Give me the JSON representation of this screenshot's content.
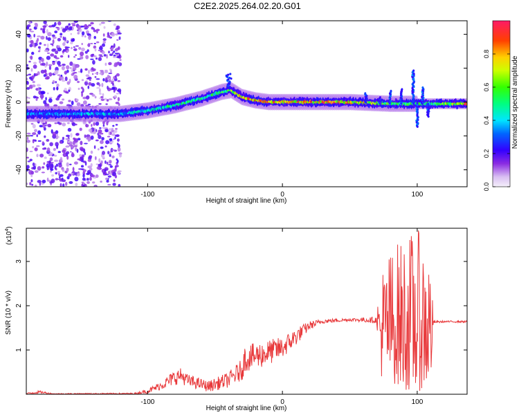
{
  "title": "C2E2.2025.264.02.20.G01",
  "chart_data": [
    {
      "type": "heatmap",
      "xlabel": "Height of straight line (km)",
      "ylabel": "Frequency (Hz)",
      "xlim": [
        -190,
        137
      ],
      "ylim": [
        -50,
        48
      ],
      "xticks": [
        -100,
        0,
        100
      ],
      "yticks": [
        -40,
        -20,
        0,
        20,
        40
      ],
      "colorbar": {
        "label": "Normalized spectral amplitude",
        "ticks": [
          "0.0",
          "0.2",
          "0.4",
          "0.6",
          "0.8"
        ],
        "range": [
          0,
          1
        ]
      },
      "ridge": {
        "description_free": true,
        "x": [
          -190,
          -150,
          -120,
          -100,
          -80,
          -60,
          -45,
          -38,
          -30,
          -20,
          -10,
          0,
          20,
          50,
          80,
          100,
          120,
          137
        ],
        "y": [
          -7,
          -7,
          -7,
          -5,
          -2,
          2,
          6,
          7,
          3,
          1,
          0,
          0,
          0,
          0,
          -1,
          -1,
          -1,
          -1
        ],
        "amplitude": [
          0.35,
          0.4,
          0.4,
          0.45,
          0.5,
          0.55,
          0.55,
          0.7,
          0.8,
          0.85,
          0.85,
          0.75,
          0.85,
          0.85,
          0.6,
          0.55,
          0.6,
          0.9
        ]
      }
    },
    {
      "type": "line",
      "xlabel": "Height of straight line (km)",
      "ylabel": "SNR (10 * v/v)",
      "scale_label": "(x10",
      "scale_exp": "4",
      "xlim": [
        -190,
        137
      ],
      "ylim": [
        0,
        3.75
      ],
      "xticks": [
        -100,
        0,
        100
      ],
      "yticks": [
        1,
        2,
        3
      ],
      "series": [
        {
          "color": "#e8393b",
          "envelope": {
            "x": [
              -190,
              -180,
              -170,
              -110,
              -100,
              -90,
              -80,
              -75,
              -70,
              -60,
              -55,
              -40,
              -30,
              -28,
              -15,
              0,
              10,
              20,
              30,
              50,
              70,
              72,
              80,
              90,
              100,
              110,
              112,
              120,
              137
            ],
            "low": [
              0.0,
              0.02,
              0.0,
              0.0,
              0.02,
              0.1,
              0.2,
              0.25,
              0.15,
              0.1,
              0.05,
              0.15,
              0.3,
              0.5,
              0.6,
              0.8,
              1.1,
              1.45,
              1.6,
              1.65,
              1.6,
              0.4,
              0.3,
              0.1,
              0.05,
              0.2,
              1.6,
              1.62,
              1.62
            ],
            "high": [
              0.03,
              0.08,
              0.02,
              0.03,
              0.12,
              0.3,
              0.55,
              0.6,
              0.45,
              0.35,
              0.3,
              0.5,
              0.8,
              1.1,
              1.2,
              1.3,
              1.5,
              1.65,
              1.7,
              1.72,
              1.75,
              2.8,
              3.3,
              3.6,
              3.75,
              3.2,
              1.66,
              1.66,
              1.66
            ]
          }
        }
      ]
    }
  ]
}
